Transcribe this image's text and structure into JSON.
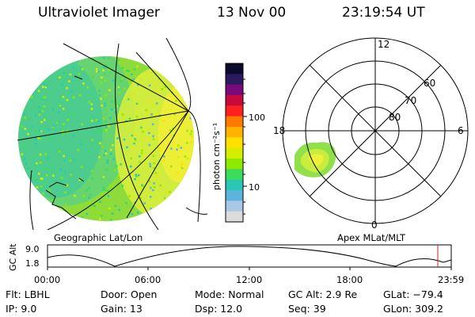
{
  "header": {
    "instrument": "Ultraviolet Imager",
    "date": "13 Nov 00",
    "time": "23:19:54 UT"
  },
  "left_panel": {
    "caption": "Geographic Lat/Lon"
  },
  "right_panel": {
    "caption": "Apex MLat/MLT",
    "mlt_labels": {
      "top": "12",
      "left": "18",
      "right": "6",
      "bottom": "0"
    },
    "lat_labels": [
      "60",
      "70",
      "80"
    ]
  },
  "colorbar": {
    "unit_label": "photon cm⁻²s⁻¹",
    "tick_labels": [
      "100",
      "10"
    ],
    "colors": [
      "#0a0a2a",
      "#2a1a5e",
      "#7a0a7a",
      "#c80a3a",
      "#ff2020",
      "#ff7a00",
      "#ffb300",
      "#ffe000",
      "#d4f000",
      "#8ee800",
      "#3cdc5a",
      "#28c8b4",
      "#5ab4dc",
      "#a8c8e6",
      "#dcdcdc"
    ]
  },
  "timeline": {
    "ylabel": "GC Alt",
    "yticks": [
      "9.0",
      "1.8"
    ],
    "xticks": [
      "00:00",
      "06:00",
      "12:00",
      "18:00",
      "23:59"
    ]
  },
  "info": {
    "filter": "Flt: LBHL",
    "ip": "IP:  9.0",
    "door": "Door: Open",
    "gain": "Gain: 13",
    "mode": "Mode: Normal",
    "dsp": "Dsp:   12.0",
    "gc_alt": "GC Alt: 2.9 Re",
    "seq": "Seq: 39",
    "glat": "GLat: −79.4",
    "glon": "GLon: 309.2"
  }
}
